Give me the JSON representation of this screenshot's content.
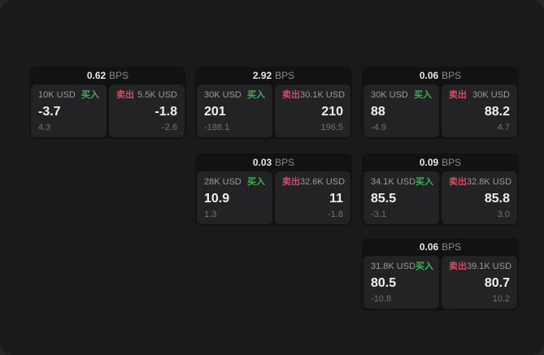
{
  "colors": {
    "buy_accent": "#3fae5c",
    "sell_accent": "#cf4d66",
    "panel_background": "#1a1a1b",
    "card_background": "#121213",
    "subpanel_background": "#232325"
  },
  "cards": [
    {
      "grid": {
        "row": 0,
        "col": 0
      },
      "bps": {
        "value": "0.62",
        "unit": "BPS"
      },
      "buy": {
        "amount": "10K USD",
        "label": "买入",
        "value": "-3.7",
        "sub": "4.3"
      },
      "sell": {
        "label": "卖出",
        "amount": "5.5K USD",
        "value": "-1.8",
        "sub": "-2.6"
      }
    },
    {
      "grid": {
        "row": 0,
        "col": 1
      },
      "bps": {
        "value": "2.92",
        "unit": "BPS"
      },
      "buy": {
        "amount": "30K USD",
        "label": "买入",
        "value": "201",
        "sub": "-188.1"
      },
      "sell": {
        "label": "卖出",
        "amount": "30.1K USD",
        "value": "210",
        "sub": "196.5"
      }
    },
    {
      "grid": {
        "row": 0,
        "col": 2
      },
      "bps": {
        "value": "0.06",
        "unit": "BPS"
      },
      "buy": {
        "amount": "30K USD",
        "label": "买入",
        "value": "88",
        "sub": "-4.9"
      },
      "sell": {
        "label": "卖出",
        "amount": "30K USD",
        "value": "88.2",
        "sub": "4.7"
      }
    },
    {
      "grid": {
        "row": 1,
        "col": 1
      },
      "bps": {
        "value": "0.03",
        "unit": "BPS"
      },
      "buy": {
        "amount": "28K USD",
        "label": "买入",
        "value": "10.9",
        "sub": "1.3"
      },
      "sell": {
        "label": "卖出",
        "amount": "32.6K USD",
        "value": "11",
        "sub": "-1.8"
      }
    },
    {
      "grid": {
        "row": 1,
        "col": 2
      },
      "bps": {
        "value": "0.09",
        "unit": "BPS"
      },
      "buy": {
        "amount": "34.1K USD",
        "label": "买入",
        "value": "85.5",
        "sub": "-3.1"
      },
      "sell": {
        "label": "卖出",
        "amount": "32.8K USD",
        "value": "85.8",
        "sub": "3.0"
      }
    },
    {
      "grid": {
        "row": 2,
        "col": 2
      },
      "bps": {
        "value": "0.06",
        "unit": "BPS"
      },
      "buy": {
        "amount": "31.8K USD",
        "label": "买入",
        "value": "80.5",
        "sub": "-10.8"
      },
      "sell": {
        "label": "卖出",
        "amount": "39.1K USD",
        "value": "80.7",
        "sub": "10.2"
      }
    }
  ]
}
